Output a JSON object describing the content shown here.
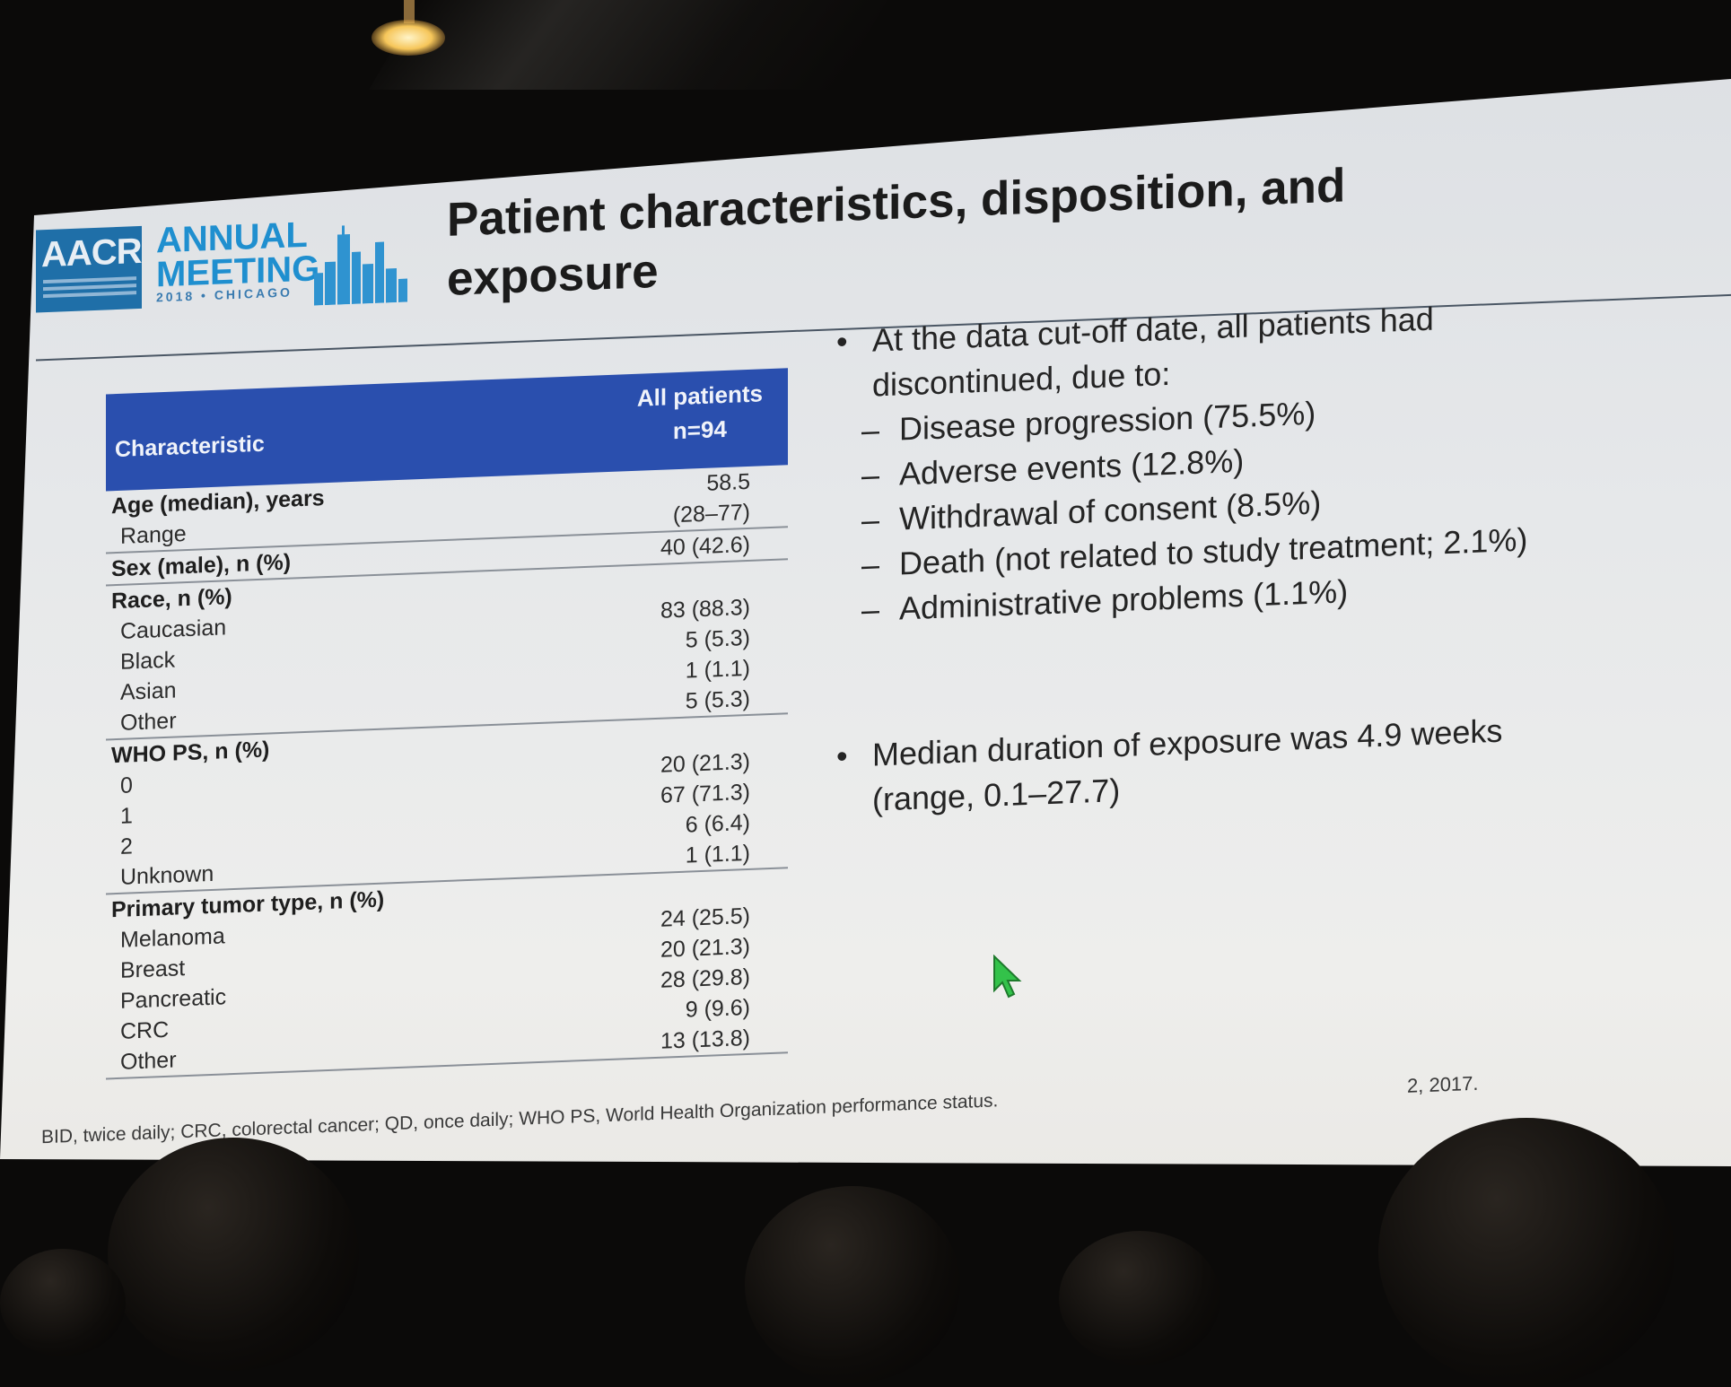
{
  "slide": {
    "logo": {
      "org": "AACR",
      "event_line1": "ANNUAL",
      "event_line2": "MEETING",
      "event_year": "2018 • CHICAGO"
    },
    "title": "Patient characteristics, disposition, and exposure",
    "table": {
      "col_characteristic": "Characteristic",
      "col_all_line1": "All patients",
      "col_all_line2": "n=94",
      "groups": [
        {
          "rows": [
            {
              "label": "Age (median), years",
              "value": "58.5",
              "bold": true
            },
            {
              "label": "Range",
              "value": "(28–77)",
              "sub": true
            }
          ]
        },
        {
          "rows": [
            {
              "label": "Sex (male), n (%)",
              "value": "40 (42.6)",
              "bold": true
            }
          ]
        },
        {
          "rows": [
            {
              "label": "Race, n (%)",
              "value": "",
              "bold": true
            },
            {
              "label": "Caucasian",
              "value": "83 (88.3)",
              "sub": true
            },
            {
              "label": "Black",
              "value": "5 (5.3)",
              "sub": true
            },
            {
              "label": "Asian",
              "value": "1 (1.1)",
              "sub": true
            },
            {
              "label": "Other",
              "value": "5 (5.3)",
              "sub": true
            }
          ]
        },
        {
          "rows": [
            {
              "label": "WHO PS, n (%)",
              "value": "",
              "bold": true
            },
            {
              "label": "0",
              "value": "20 (21.3)",
              "sub": true
            },
            {
              "label": "1",
              "value": "67 (71.3)",
              "sub": true
            },
            {
              "label": "2",
              "value": "6 (6.4)",
              "sub": true
            },
            {
              "label": "Unknown",
              "value": "1 (1.1)",
              "sub": true
            }
          ]
        },
        {
          "rows": [
            {
              "label": "Primary tumor type, n (%)",
              "value": "",
              "bold": true
            },
            {
              "label": "Melanoma",
              "value": "24 (25.5)",
              "sub": true
            },
            {
              "label": "Breast",
              "value": "20 (21.3)",
              "sub": true
            },
            {
              "label": "Pancreatic",
              "value": "28 (29.8)",
              "sub": true
            },
            {
              "label": "CRC",
              "value": "9 (9.6)",
              "sub": true
            },
            {
              "label": "Other",
              "value": "13 (13.8)",
              "sub": true
            }
          ]
        }
      ]
    },
    "bullets": {
      "b1_line1": "At the data cut-off date, all patients had",
      "b1_line2": "discontinued, due to:",
      "reasons": [
        "Disease progression (75.5%)",
        "Adverse events (12.8%)",
        "Withdrawal of consent (8.5%)",
        "Death (not related to study treatment; 2.1%)",
        "Administrative problems (1.1%)"
      ],
      "b2_line1": "Median duration of exposure was 4.9 weeks",
      "b2_line2": "(range, 0.1–27.7)"
    },
    "footnote": "BID, twice daily; CRC, colorectal cancer; QD, once daily; WHO PS, World Health Organization performance status.",
    "date_fragment": "2, 2017."
  }
}
